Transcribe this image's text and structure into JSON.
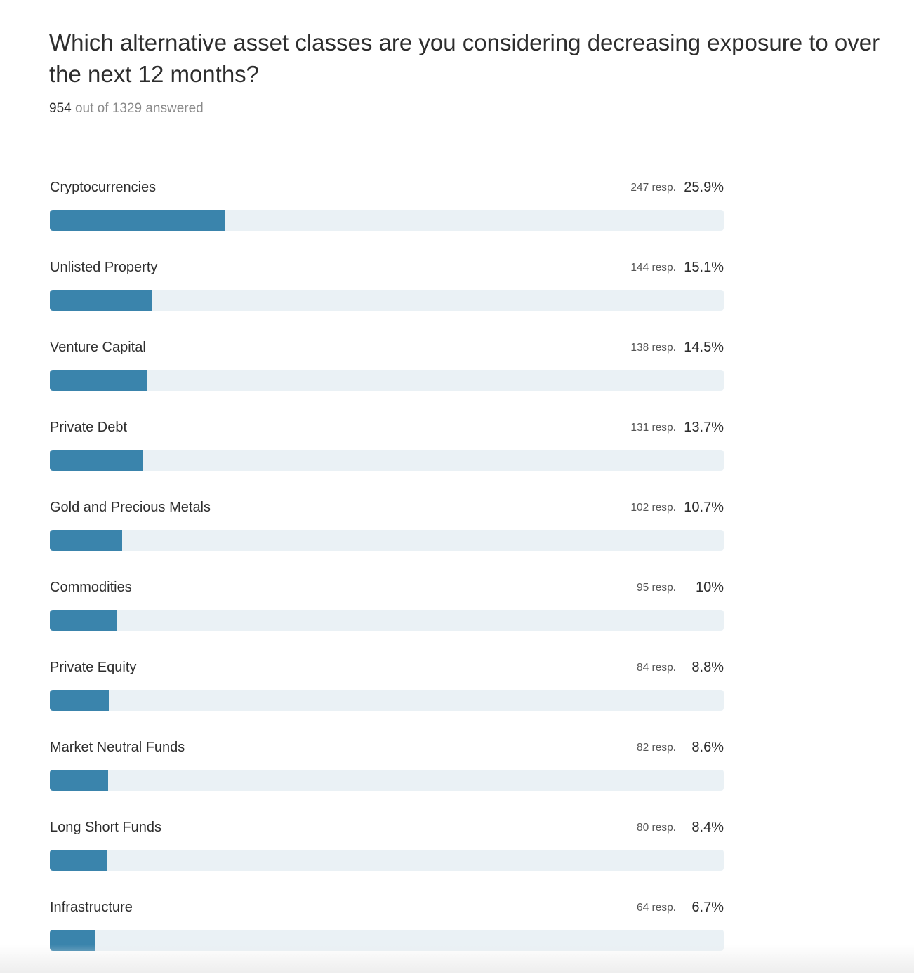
{
  "question": {
    "title": "Which alternative asset classes are you considering decreasing exposure to over the next 12 months?",
    "answered_count": "954",
    "answered_rest": " out of 1329 answered"
  },
  "colors": {
    "bar_fill": "#3a84ac",
    "bar_track": "#eaf1f5"
  },
  "chart_data": {
    "type": "bar",
    "orientation": "horizontal",
    "title": "Which alternative asset classes are you considering decreasing exposure to over the next 12 months?",
    "categories": [
      "Cryptocurrencies",
      "Unlisted Property",
      "Venture Capital",
      "Private Debt",
      "Gold and Precious Metals",
      "Commodities",
      "Private Equity",
      "Market Neutral Funds",
      "Long Short Funds",
      "Infrastructure"
    ],
    "responses": [
      247,
      144,
      138,
      131,
      102,
      95,
      84,
      82,
      80,
      64
    ],
    "values": [
      25.9,
      15.1,
      14.5,
      13.7,
      10.7,
      10,
      8.8,
      8.6,
      8.4,
      6.7
    ],
    "resp_labels": [
      "247 resp.",
      "144 resp.",
      "138 resp.",
      "131 resp.",
      "102 resp.",
      "95 resp.",
      "84 resp.",
      "82 resp.",
      "80 resp.",
      "64 resp."
    ],
    "pct_labels": [
      "25.9%",
      "15.1%",
      "14.5%",
      "13.7%",
      "10.7%",
      "10%",
      "8.8%",
      "8.6%",
      "8.4%",
      "6.7%"
    ],
    "xlim": [
      0,
      100
    ],
    "xlabel": "",
    "ylabel": "",
    "grid": false
  }
}
